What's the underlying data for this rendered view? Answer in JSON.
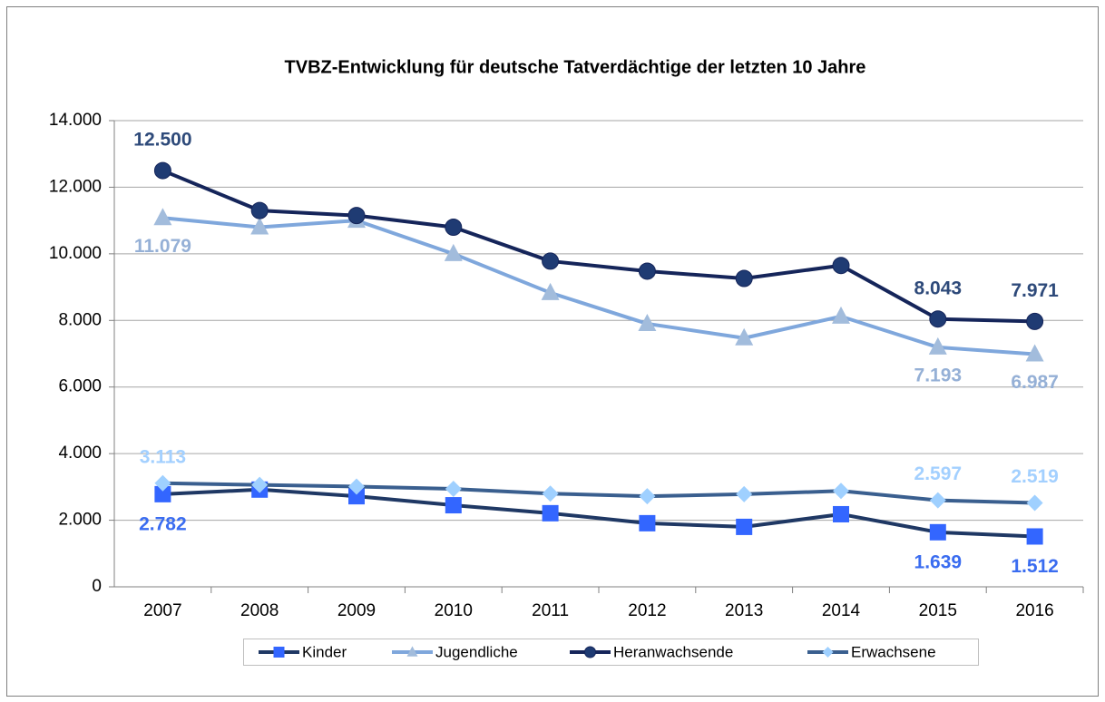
{
  "chart_data": {
    "type": "line",
    "title": "TVBZ-Entwicklung für deutsche Tatverdächtige der letzten 10 Jahre",
    "categories": [
      "2007",
      "2008",
      "2009",
      "2010",
      "2011",
      "2012",
      "2013",
      "2014",
      "2015",
      "2016"
    ],
    "ylim": [
      0,
      14000
    ],
    "yticks": [
      0,
      {
        "value": 2000,
        "label": "2.000"
      },
      {
        "value": 4000,
        "label": "4.000"
      },
      {
        "value": 6000,
        "label": "6.000"
      },
      {
        "value": 8000,
        "label": "8.000"
      },
      {
        "value": 10000,
        "label": "10.000"
      },
      {
        "value": 12000,
        "label": "12.000"
      },
      {
        "value": 14000,
        "label": "14.000"
      }
    ],
    "grid": true,
    "legend": "bottom",
    "series": [
      {
        "name": "Kinder",
        "color": "#1f3864",
        "marker": "square",
        "marker_color": "#3366ff",
        "label_color": "#3a6cf0",
        "values": [
          2782,
          2920,
          2720,
          2450,
          2210,
          1910,
          1800,
          2180,
          1639,
          1512
        ],
        "value_labels": [
          "2.782",
          null,
          null,
          null,
          null,
          null,
          null,
          null,
          "1.639",
          "1.512"
        ]
      },
      {
        "name": "Jugendliche",
        "color": "#7fa7dc",
        "marker": "triangle",
        "marker_color": "#a2bcdc",
        "label_color": "#95b0d6",
        "values": [
          11079,
          10800,
          11000,
          10000,
          8830,
          7900,
          7470,
          8120,
          7193,
          6987
        ],
        "value_labels": [
          "11.079",
          null,
          null,
          null,
          null,
          null,
          null,
          null,
          "7.193",
          "6.987"
        ]
      },
      {
        "name": "Heranwachsende",
        "color": "#15255a",
        "marker": "circle",
        "marker_color": "#1f3b73",
        "label_color": "#2e4a7a",
        "values": [
          12500,
          11300,
          11150,
          10800,
          9780,
          9480,
          9260,
          9650,
          8043,
          7971
        ],
        "value_labels": [
          "12.500",
          null,
          null,
          null,
          null,
          null,
          null,
          null,
          "8.043",
          "7.971"
        ]
      },
      {
        "name": "Erwachsene",
        "color": "#3a5f8f",
        "marker": "diamond",
        "marker_color": "#9fd0ff",
        "label_color": "#a3d0ff",
        "values": [
          3113,
          3060,
          3010,
          2940,
          2800,
          2720,
          2780,
          2880,
          2597,
          2519
        ],
        "value_labels": [
          "3.113",
          null,
          null,
          null,
          null,
          null,
          null,
          null,
          "2.597",
          "2.519"
        ]
      }
    ]
  }
}
